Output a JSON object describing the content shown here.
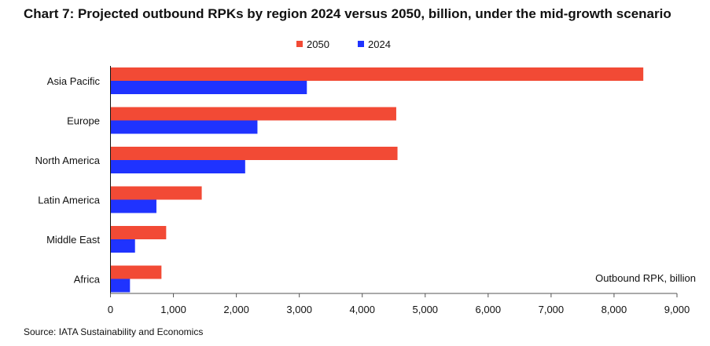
{
  "chart_data": {
    "type": "bar",
    "orientation": "horizontal",
    "title": "Chart 7: Projected outbound RPKs by region 2024 versus 2050, billion, under the mid-growth scenario",
    "categories": [
      "Asia Pacific",
      "Europe",
      "North America",
      "Latin America",
      "Middle East",
      "Africa"
    ],
    "series": [
      {
        "name": "2050",
        "color": "#f24a35",
        "values": [
          8465,
          4540,
          4560,
          1450,
          885,
          810
        ]
      },
      {
        "name": "2024",
        "color": "#1f33ff",
        "values": [
          3120,
          2335,
          2140,
          730,
          390,
          310
        ]
      }
    ],
    "xlabel": "Outbound RPK, billion",
    "xlim": [
      0,
      9000
    ],
    "xticks": [
      "0",
      "1,000",
      "2,000",
      "3,000",
      "4,000",
      "5,000",
      "6,000",
      "7,000",
      "8,000",
      "9,000"
    ],
    "legend": "top-center",
    "grid": false,
    "source": "Source: IATA Sustainability and Economics"
  }
}
